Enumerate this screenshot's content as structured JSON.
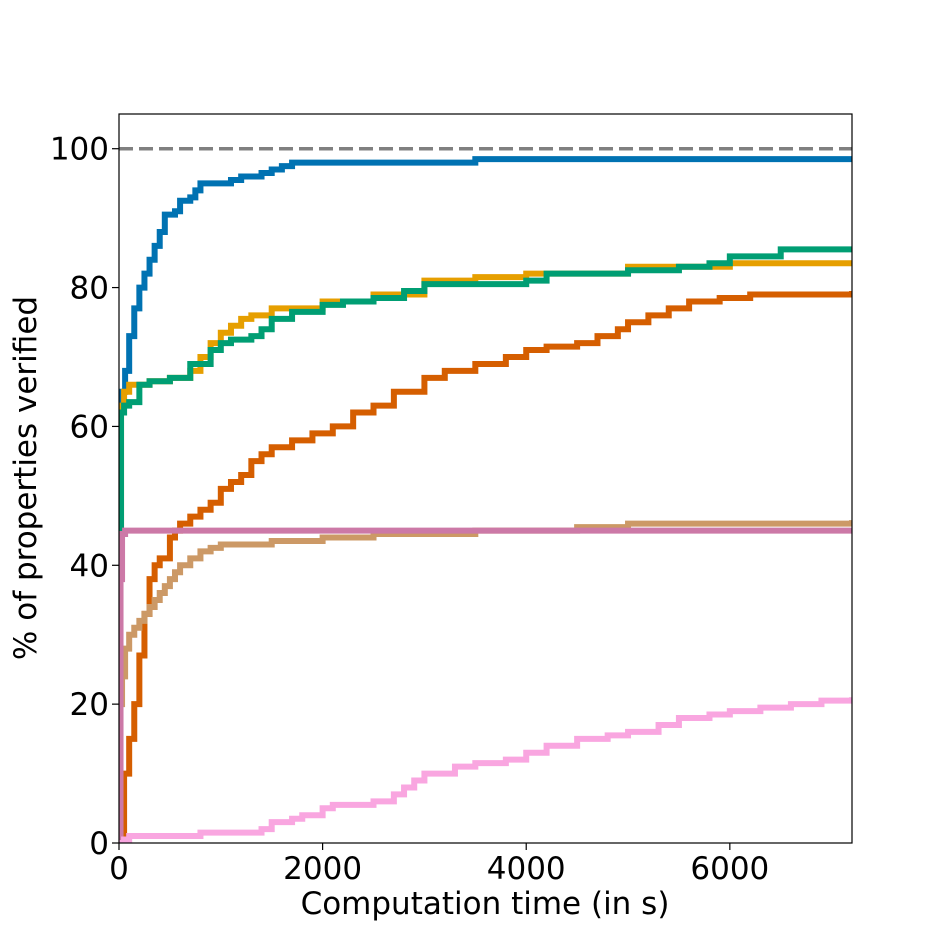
{
  "chart_data": {
    "type": "line",
    "title": "",
    "xlabel": "Computation time (in s)",
    "ylabel": "% of properties verified",
    "xlim": [
      0,
      7200
    ],
    "ylim": [
      0,
      105
    ],
    "xticks": [
      0,
      2000,
      4000,
      6000
    ],
    "xtick_labels": [
      "0",
      "2000",
      "4000",
      "6000"
    ],
    "yticks": [
      0,
      20,
      40,
      60,
      80,
      100
    ],
    "ytick_labels": [
      "0",
      "20",
      "40",
      "60",
      "80",
      "100"
    ],
    "grid": false,
    "legend": "none",
    "reference_line": {
      "y": 100,
      "style": "dashed",
      "color": "#808080"
    },
    "series": [
      {
        "color": "#0072b2",
        "x": [
          0,
          10,
          30,
          60,
          100,
          150,
          200,
          250,
          300,
          350,
          400,
          450,
          550,
          600,
          700,
          750,
          800,
          1000,
          1100,
          1200,
          1400,
          1500,
          1600,
          1700,
          2500,
          3500,
          7200
        ],
        "y": [
          45,
          62,
          65,
          68,
          73,
          77,
          80,
          82,
          84,
          86,
          88,
          90.5,
          91,
          92.5,
          93,
          94,
          95,
          95,
          95.5,
          96,
          96.5,
          97,
          97.5,
          98,
          98,
          98.5,
          98.5
        ]
      },
      {
        "color": "#e69f00",
        "x": [
          0,
          20,
          50,
          100,
          300,
          500,
          700,
          800,
          900,
          1000,
          1100,
          1200,
          1300,
          1500,
          1600,
          2000,
          2500,
          3000,
          3500,
          4000,
          5000,
          6000,
          7200
        ],
        "y": [
          40,
          63,
          65,
          66,
          66.5,
          67,
          68,
          70,
          72,
          73.5,
          74.5,
          75.5,
          76,
          77,
          77,
          78,
          79,
          81,
          81.5,
          82,
          83,
          83.5,
          83.5
        ]
      },
      {
        "color": "#009e73",
        "x": [
          0,
          20,
          50,
          100,
          200,
          300,
          500,
          700,
          900,
          1000,
          1100,
          1300,
          1400,
          1500,
          1700,
          2000,
          2200,
          2500,
          2800,
          3000,
          3500,
          4000,
          4200,
          4500,
          5000,
          5500,
          5800,
          6000,
          6500,
          7200
        ],
        "y": [
          40,
          62,
          63,
          63.5,
          66,
          66.5,
          67,
          69,
          71,
          72,
          72.5,
          73,
          74,
          75.5,
          76.5,
          77.5,
          78,
          78.5,
          79.5,
          80.5,
          80.5,
          81,
          82,
          82,
          82.5,
          83,
          83.5,
          84.5,
          85.5,
          85.5
        ]
      },
      {
        "color": "#d55e00",
        "x": [
          0,
          50,
          100,
          150,
          200,
          250,
          300,
          350,
          400,
          500,
          550,
          600,
          700,
          800,
          900,
          1000,
          1100,
          1200,
          1300,
          1400,
          1500,
          1700,
          1900,
          2100,
          2300,
          2500,
          2700,
          3000,
          3200,
          3500,
          3800,
          4000,
          4200,
          4500,
          4700,
          4900,
          5000,
          5200,
          5400,
          5600,
          5900,
          6200,
          7200
        ],
        "y": [
          0,
          10,
          15,
          20,
          27,
          33,
          38,
          40,
          41,
          44,
          45,
          46,
          47,
          48,
          49,
          51,
          52,
          53,
          55,
          56,
          57,
          58,
          59,
          60,
          62,
          63,
          65,
          67,
          68,
          69,
          70,
          71,
          71.5,
          72,
          73,
          74,
          75,
          76,
          77,
          78,
          78.5,
          79,
          79.5
        ]
      },
      {
        "color": "#cc9966",
        "x": [
          0,
          10,
          30,
          60,
          100,
          150,
          200,
          250,
          300,
          350,
          400,
          450,
          500,
          550,
          600,
          700,
          800,
          900,
          1000,
          1500,
          2000,
          2500,
          3000,
          3500,
          4000,
          4500,
          5000,
          6000,
          7200
        ],
        "y": [
          0,
          20,
          24,
          28,
          30,
          31,
          32,
          33,
          34,
          35,
          36,
          37,
          38,
          39,
          40,
          41,
          42,
          42.5,
          43,
          43.5,
          44,
          44.5,
          44.5,
          45,
          45,
          45.5,
          46,
          46,
          46.5
        ]
      },
      {
        "color": "#cc79a7",
        "x": [
          0,
          15,
          30,
          60,
          7200
        ],
        "y": [
          0,
          38,
          44.5,
          45,
          45
        ]
      },
      {
        "color": "#f9a6e0",
        "x": [
          0,
          50,
          100,
          300,
          800,
          1400,
          1500,
          1700,
          1800,
          2000,
          2100,
          2500,
          2700,
          2800,
          2900,
          3000,
          3300,
          3500,
          3800,
          4000,
          4200,
          4500,
          4800,
          5000,
          5300,
          5500,
          5800,
          6000,
          6300,
          6600,
          6900,
          7200
        ],
        "y": [
          0,
          0.5,
          1,
          1,
          1.5,
          2,
          3,
          3.5,
          4,
          5,
          5.5,
          6,
          7,
          8,
          9,
          10,
          11,
          11.5,
          12,
          13,
          14,
          15,
          15.5,
          16,
          17,
          18,
          18.5,
          19,
          19.5,
          20,
          20.5,
          21
        ]
      }
    ]
  }
}
